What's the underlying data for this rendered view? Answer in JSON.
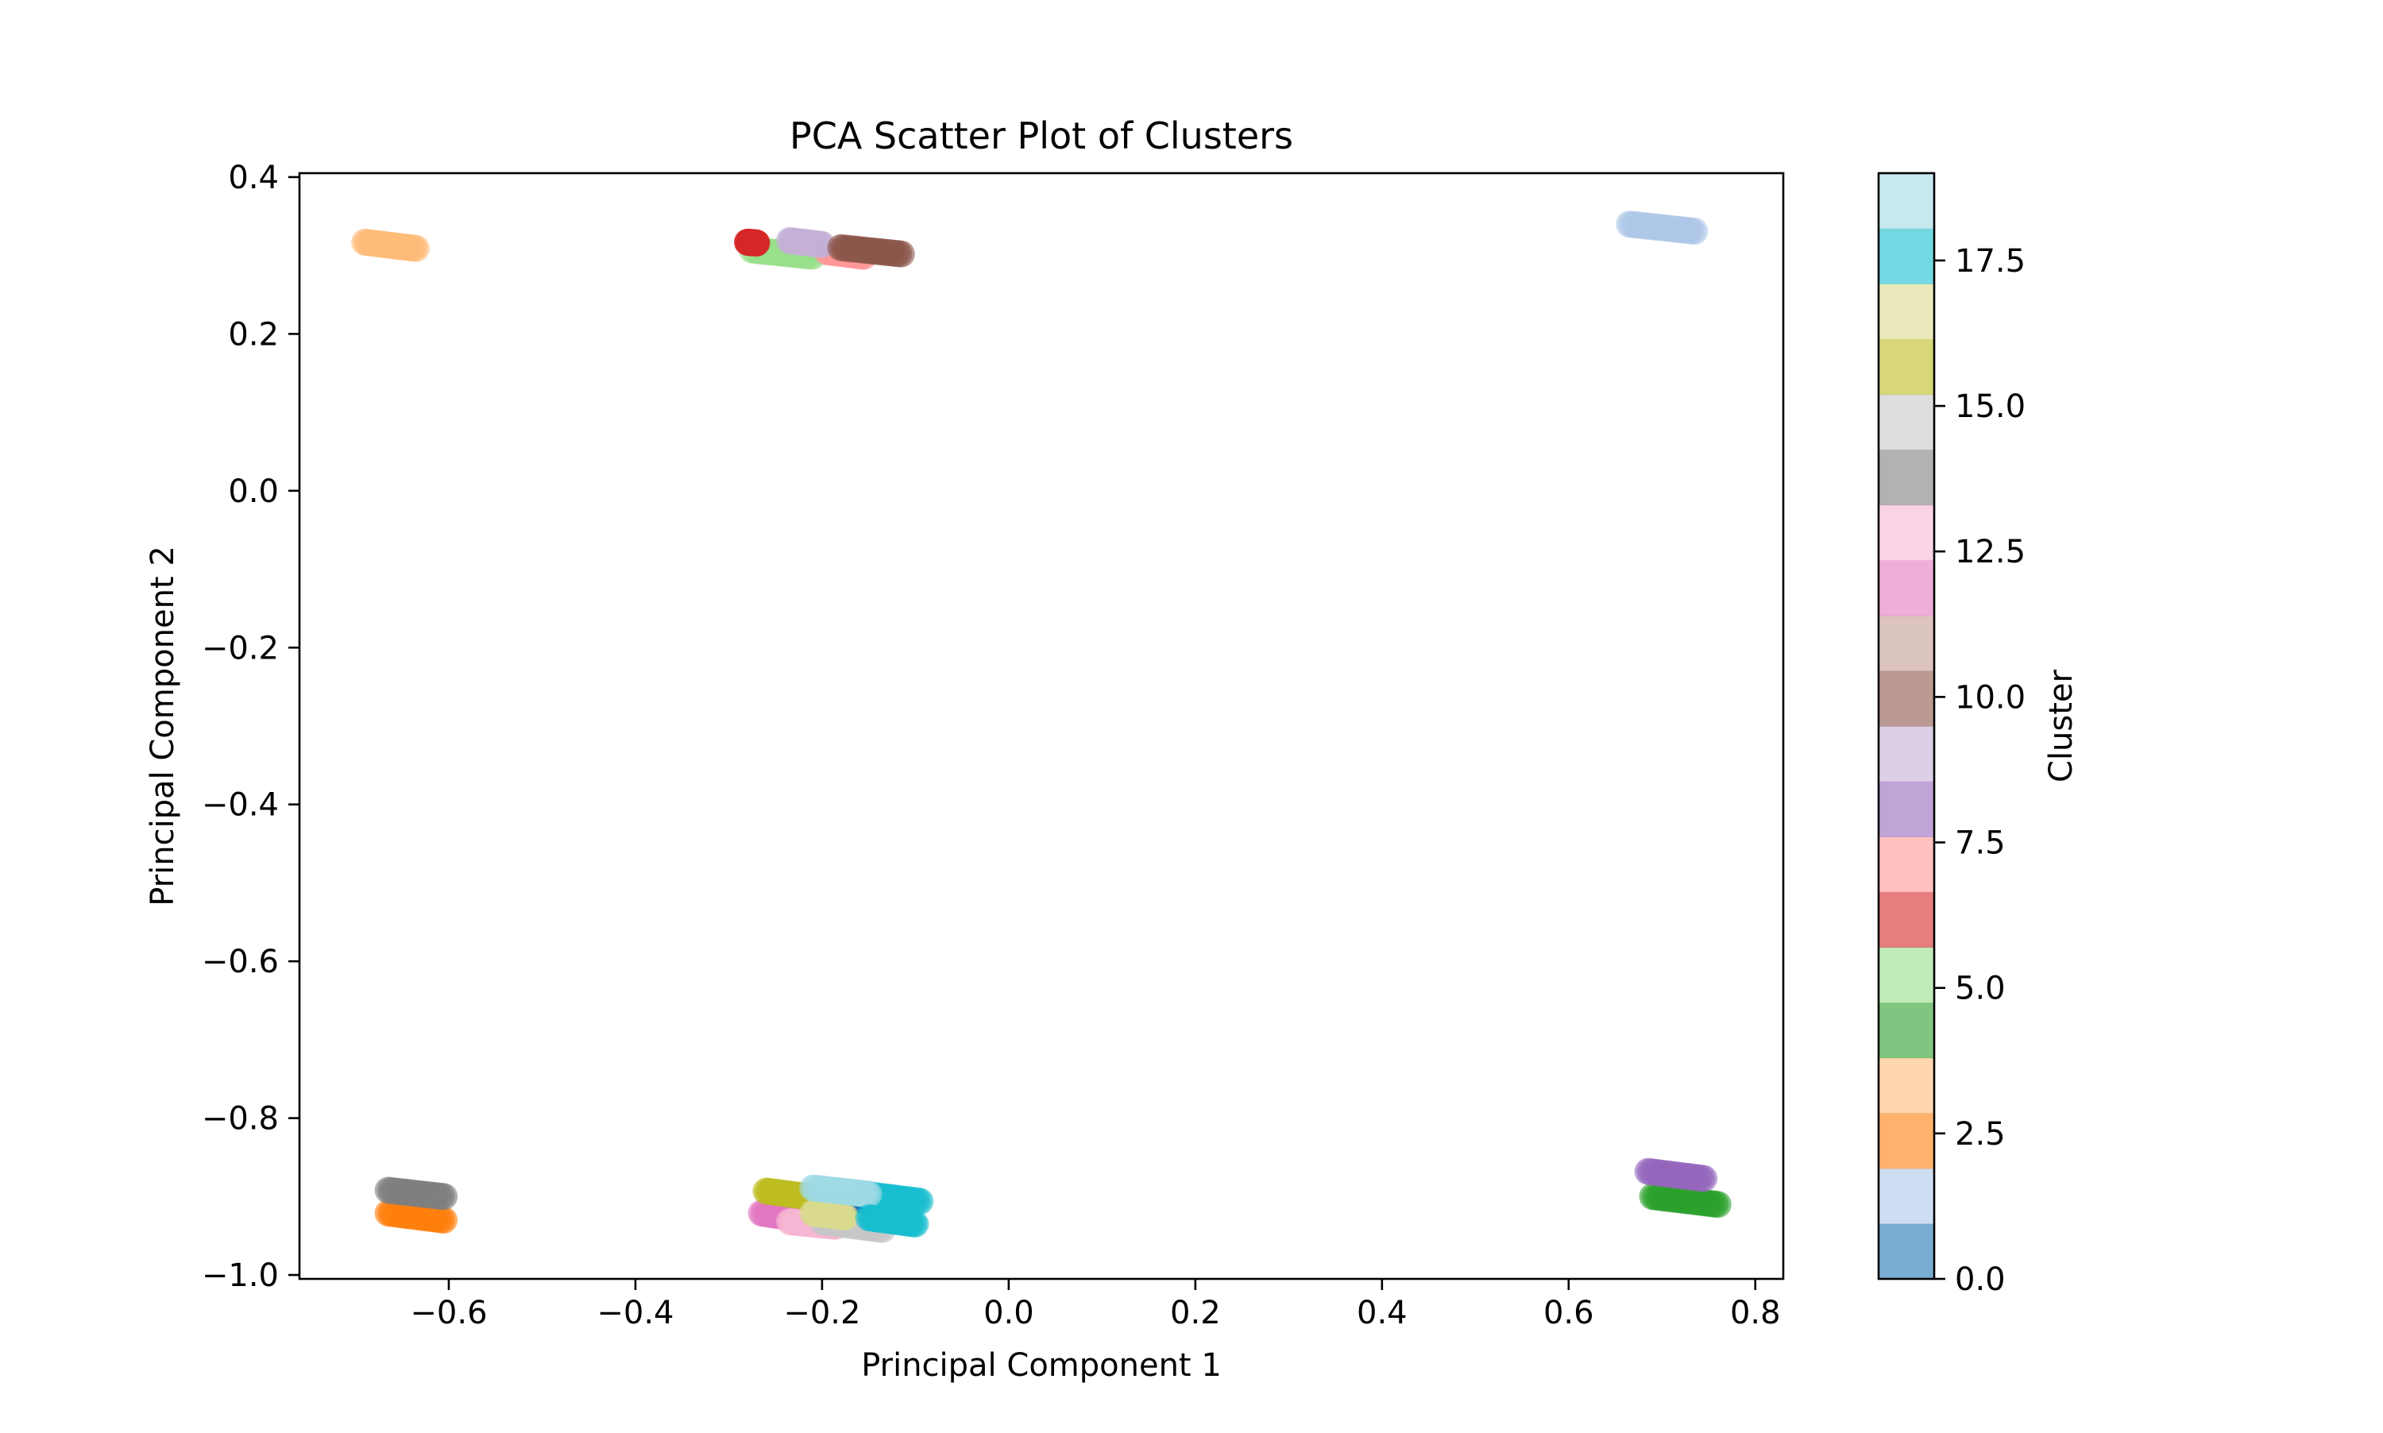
{
  "chart_data": {
    "type": "scatter",
    "title": "PCA Scatter Plot of Clusters",
    "xlabel": "Principal Component 1",
    "ylabel": "Principal Component 2",
    "xlim": [
      -0.76,
      0.83
    ],
    "ylim": [
      -1.005,
      0.405
    ],
    "xticks": [
      -0.6,
      -0.4,
      -0.2,
      0.0,
      0.2,
      0.4,
      0.6,
      0.8
    ],
    "xtick_labels": [
      "−0.6",
      "−0.4",
      "−0.2",
      "0.0",
      "0.2",
      "0.4",
      "0.6",
      "0.8"
    ],
    "yticks": [
      0.4,
      0.2,
      0.0,
      -0.2,
      -0.4,
      -0.6,
      -0.8,
      -1.0
    ],
    "ytick_labels": [
      "0.4",
      "0.2",
      "0.0",
      "−0.2",
      "−0.4",
      "−0.6",
      "−0.8",
      "−1.0"
    ],
    "grid": false,
    "colorbar": {
      "label": "Cluster",
      "range": [
        0,
        19
      ],
      "ticks": [
        0.0,
        2.5,
        5.0,
        7.5,
        10.0,
        12.5,
        15.0,
        17.5
      ],
      "tick_labels": [
        "0.0",
        "2.5",
        "5.0",
        "7.5",
        "10.0",
        "12.5",
        "15.0",
        "17.5"
      ],
      "colors": [
        "#1f77b4",
        "#aec7e8",
        "#ff7f0e",
        "#ffbb78",
        "#2ca02c",
        "#98df8a",
        "#d62728",
        "#ff9896",
        "#9467bd",
        "#c5b0d5",
        "#8c564b",
        "#c49c94",
        "#e377c2",
        "#f7b6d2",
        "#7f7f7f",
        "#c7c7c7",
        "#bcbd22",
        "#dbdb8d",
        "#17becf",
        "#9edae5"
      ],
      "alpha": 0.6
    },
    "series": [
      {
        "cluster": 0,
        "x": [
          -0.185,
          -0.155
        ],
        "y": [
          -0.905,
          -0.91
        ]
      },
      {
        "cluster": 1,
        "x": [
          0.665,
          0.735
        ],
        "y": [
          0.34,
          0.331
        ]
      },
      {
        "cluster": 2,
        "x": [
          -0.665,
          -0.605
        ],
        "y": [
          -0.921,
          -0.93
        ]
      },
      {
        "cluster": 3,
        "x": [
          -0.69,
          -0.635
        ],
        "y": [
          0.317,
          0.309
        ]
      },
      {
        "cluster": 4,
        "x": [
          0.69,
          0.76
        ],
        "y": [
          -0.9,
          -0.91
        ]
      },
      {
        "cluster": 5,
        "x": [
          -0.275,
          -0.21
        ],
        "y": [
          0.307,
          0.299
        ]
      },
      {
        "cluster": 6,
        "x": [
          -0.28,
          -0.27
        ],
        "y": [
          0.317,
          0.316
        ]
      },
      {
        "cluster": 7,
        "x": [
          -0.195,
          -0.155
        ],
        "y": [
          0.305,
          0.299
        ]
      },
      {
        "cluster": 8,
        "x": [
          0.685,
          0.745
        ],
        "y": [
          -0.868,
          -0.877
        ]
      },
      {
        "cluster": 9,
        "x": [
          -0.235,
          -0.2
        ],
        "y": [
          0.319,
          0.314
        ]
      },
      {
        "cluster": 10,
        "x": [
          -0.18,
          -0.115
        ],
        "y": [
          0.31,
          0.302
        ]
      },
      {
        "cluster": 11,
        "x": [
          -0.25,
          -0.19
        ],
        "y": [
          -0.902,
          -0.91
        ]
      },
      {
        "cluster": 12,
        "x": [
          -0.265,
          -0.215
        ],
        "y": [
          -0.921,
          -0.93
        ]
      },
      {
        "cluster": 13,
        "x": [
          -0.235,
          -0.185
        ],
        "y": [
          -0.932,
          -0.938
        ]
      },
      {
        "cluster": 14,
        "x": [
          -0.665,
          -0.605
        ],
        "y": [
          -0.892,
          -0.9
        ]
      },
      {
        "cluster": 15,
        "x": [
          -0.2,
          -0.135
        ],
        "y": [
          -0.932,
          -0.942
        ]
      },
      {
        "cluster": 16,
        "x": [
          -0.26,
          -0.215
        ],
        "y": [
          -0.893,
          -0.9
        ]
      },
      {
        "cluster": 17,
        "x": [
          -0.21,
          -0.175
        ],
        "y": [
          -0.921,
          -0.926
        ]
      },
      {
        "cluster": 18,
        "x": [
          -0.155,
          -0.095
        ],
        "y": [
          -0.897,
          -0.906
        ]
      },
      {
        "cluster": 19,
        "x": [
          -0.21,
          -0.15
        ],
        "y": [
          -0.889,
          -0.897
        ]
      },
      {
        "cluster": 18,
        "x": [
          -0.15,
          -0.1
        ],
        "y": [
          -0.927,
          -0.935
        ]
      }
    ]
  }
}
